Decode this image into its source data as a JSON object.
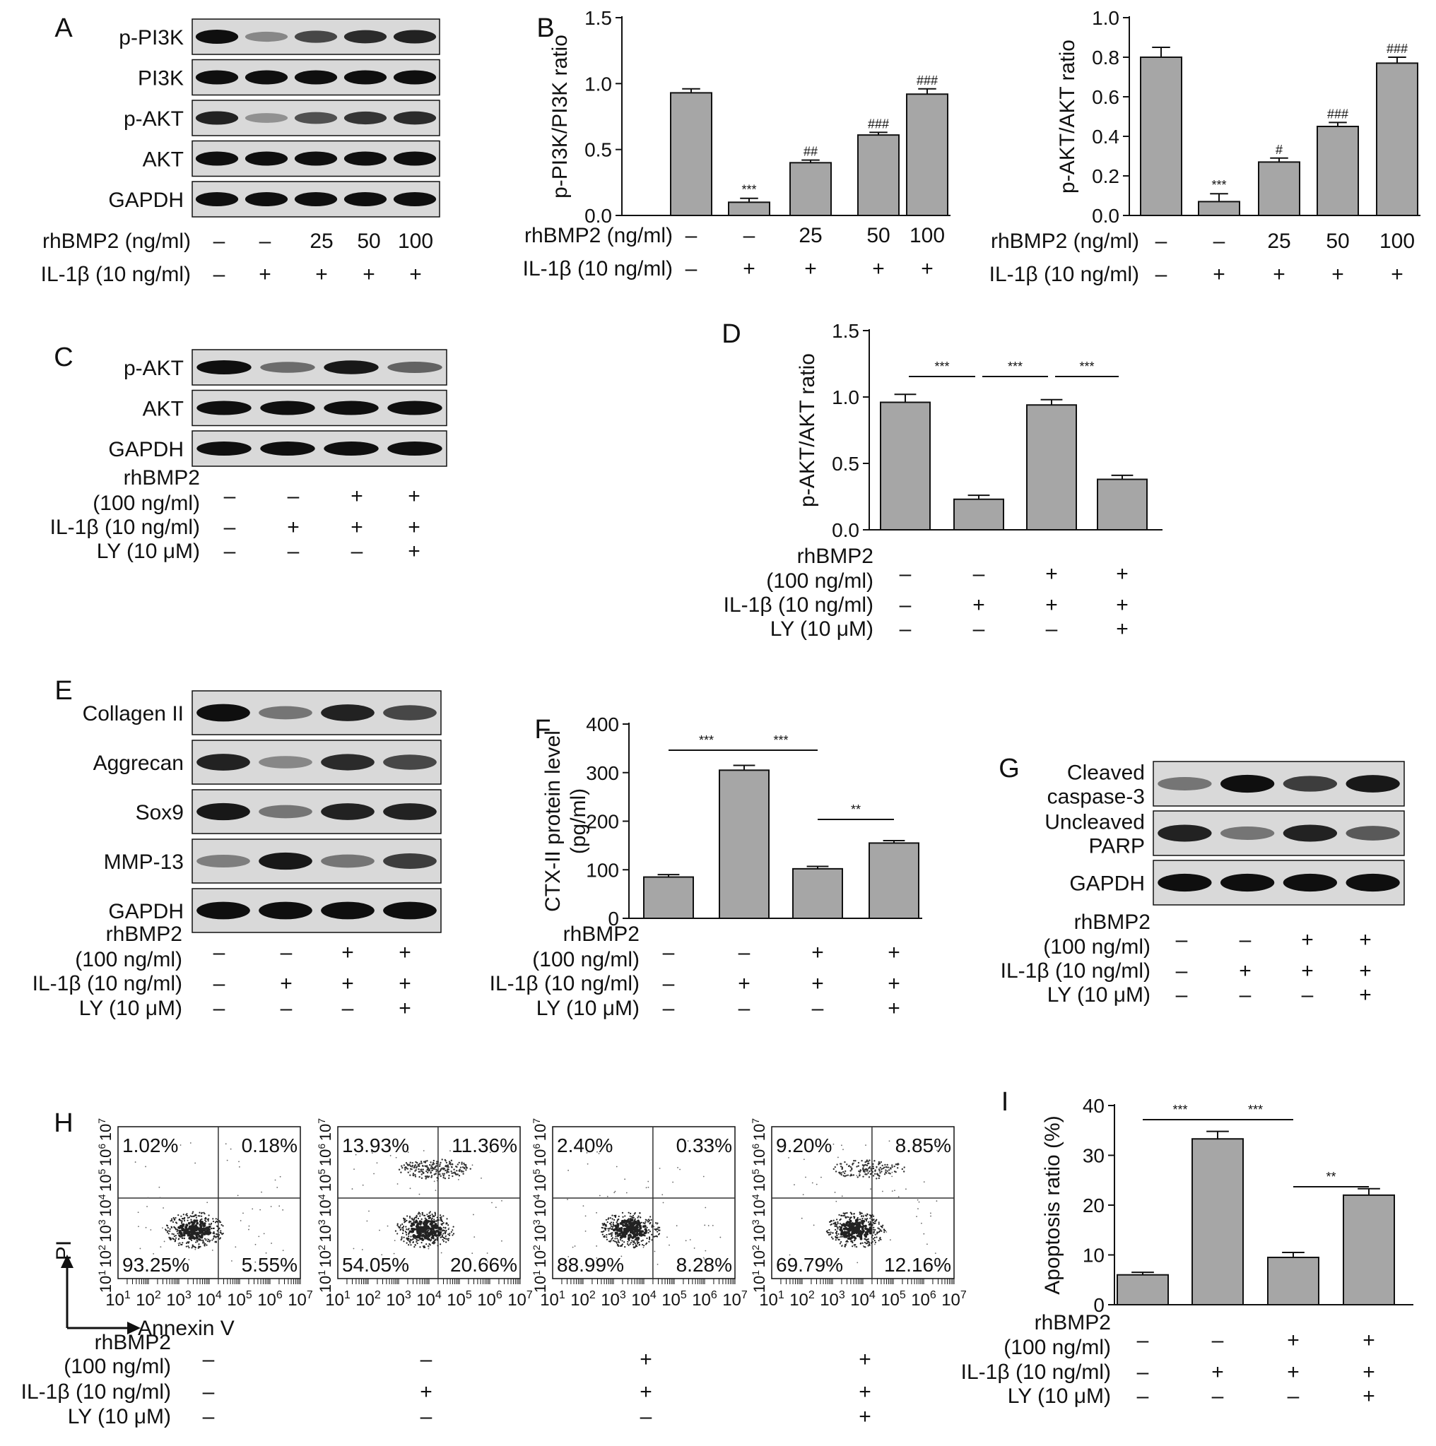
{
  "symbols": {
    "minus": "–",
    "plus": "+"
  },
  "panel_labels": {
    "A": "A",
    "B": "B",
    "C": "C",
    "D": "D",
    "E": "E",
    "F": "F",
    "G": "G",
    "H": "H",
    "I": "I"
  },
  "blot_A": {
    "bands": [
      "p-PI3K",
      "PI3K",
      "p-AKT",
      "AKT",
      "GAPDH"
    ],
    "intensities": [
      [
        1.0,
        0.35,
        0.7,
        0.85,
        0.9
      ],
      [
        1.0,
        1.0,
        1.0,
        1.0,
        1.0
      ],
      [
        0.9,
        0.3,
        0.65,
        0.8,
        0.85
      ],
      [
        1.0,
        1.0,
        1.0,
        1.0,
        1.0
      ],
      [
        1.0,
        1.0,
        1.0,
        1.0,
        1.0
      ]
    ]
  },
  "dose_rows": {
    "rhbmp2_label": "rhBMP2 (ng/ml)",
    "il1b_label": "IL-1β (10 ng/ml)",
    "rhbmp2_values": [
      "–",
      "–",
      "25",
      "50",
      "100"
    ],
    "il1b_values": [
      "–",
      "+",
      "+",
      "+",
      "+"
    ]
  },
  "four_rows": {
    "rhbmp2_line1": "rhBMP2",
    "rhbmp2_line2": "(100 ng/ml)",
    "il1b_label": "IL-1β (10 ng/ml)",
    "ly_label": "LY (10 μM)",
    "rhbmp2": [
      "–",
      "–",
      "+",
      "+"
    ],
    "il1b": [
      "–",
      "+",
      "+",
      "+"
    ],
    "ly": [
      "–",
      "–",
      "–",
      "+"
    ]
  },
  "blot_C": {
    "bands": [
      "p-AKT",
      "AKT",
      "GAPDH"
    ],
    "intensities": [
      [
        1.0,
        0.5,
        0.95,
        0.55
      ],
      [
        1.0,
        1.0,
        1.0,
        1.0
      ],
      [
        1.0,
        1.0,
        1.0,
        1.0
      ]
    ]
  },
  "blot_E": {
    "bands": [
      "Collagen II",
      "Aggrecan",
      "Sox9",
      "MMP-13",
      "GAPDH"
    ],
    "intensities": [
      [
        1.0,
        0.45,
        0.9,
        0.7
      ],
      [
        0.9,
        0.35,
        0.85,
        0.7
      ],
      [
        0.95,
        0.45,
        0.9,
        0.9
      ],
      [
        0.4,
        0.95,
        0.45,
        0.75
      ],
      [
        1.0,
        1.0,
        1.0,
        1.0
      ]
    ]
  },
  "blot_G": {
    "bands": [
      [
        "Cleaved",
        "caspase-3"
      ],
      [
        "Uncleaved",
        "PARP"
      ],
      [
        "GAPDH"
      ]
    ],
    "intensities": [
      [
        0.45,
        1.0,
        0.75,
        0.95
      ],
      [
        0.9,
        0.45,
        0.9,
        0.6
      ],
      [
        1.0,
        1.0,
        1.0,
        1.0
      ]
    ]
  },
  "flow_H": {
    "axis_y": "PI",
    "axis_x": "Annexin V",
    "tick_exponents": [
      "1",
      "2",
      "3",
      "4",
      "5",
      "6",
      "7"
    ],
    "panels": [
      {
        "quadrants": [
          "1.02%",
          "0.18%",
          "93.25%",
          "5.55%"
        ],
        "cloud_bias": 0.0
      },
      {
        "quadrants": [
          "13.93%",
          "11.36%",
          "54.05%",
          "20.66%"
        ],
        "cloud_bias": 1.0
      },
      {
        "quadrants": [
          "2.40%",
          "0.33%",
          "88.99%",
          "8.28%"
        ],
        "cloud_bias": 0.1
      },
      {
        "quadrants": [
          "9.20%",
          "8.85%",
          "69.79%",
          "12.16%"
        ],
        "cloud_bias": 0.7
      }
    ]
  },
  "chart_data": [
    {
      "id": "B-left",
      "type": "bar",
      "ylabel": "p-PI3K/PI3K ratio",
      "ylim": [
        0,
        1.5
      ],
      "yticks": [
        "0.0",
        "0.5",
        "1.0",
        "1.5"
      ],
      "ytick_values": [
        0,
        0.5,
        1.0,
        1.5
      ],
      "values": [
        0.93,
        0.1,
        0.4,
        0.61,
        0.92
      ],
      "errors": [
        0.03,
        0.03,
        0.02,
        0.02,
        0.04
      ],
      "annotations": [
        "",
        "***",
        "##",
        "###",
        "###"
      ]
    },
    {
      "id": "B-right",
      "type": "bar",
      "ylabel": "p-AKT/AKT ratio",
      "ylim": [
        0,
        1.0
      ],
      "yticks": [
        "0.0",
        "0.2",
        "0.4",
        "0.6",
        "0.8",
        "1.0"
      ],
      "ytick_values": [
        0,
        0.2,
        0.4,
        0.6,
        0.8,
        1.0
      ],
      "values": [
        0.8,
        0.07,
        0.27,
        0.45,
        0.77
      ],
      "errors": [
        0.05,
        0.04,
        0.02,
        0.02,
        0.03
      ],
      "annotations": [
        "",
        "***",
        "#",
        "###",
        "###"
      ]
    },
    {
      "id": "D",
      "type": "bar",
      "ylabel": "p-AKT/AKT ratio",
      "ylim": [
        0,
        1.5
      ],
      "yticks": [
        "0.0",
        "0.5",
        "1.0",
        "1.5"
      ],
      "ytick_values": [
        0,
        0.5,
        1.0,
        1.5
      ],
      "values": [
        0.96,
        0.23,
        0.94,
        0.38
      ],
      "errors": [
        0.06,
        0.03,
        0.04,
        0.03
      ],
      "significance": [
        {
          "from": 0,
          "to": 1,
          "label": "***"
        },
        {
          "from": 1,
          "to": 2,
          "label": "***"
        },
        {
          "from": 2,
          "to": 3,
          "label": "***"
        }
      ]
    },
    {
      "id": "F",
      "type": "bar",
      "ylabel": "CTX-II protein level",
      "ylabel2": "(pg/ml)",
      "ylim": [
        0,
        400
      ],
      "yticks": [
        "0",
        "100",
        "200",
        "300",
        "400"
      ],
      "ytick_values": [
        0,
        100,
        200,
        300,
        400
      ],
      "values": [
        85,
        305,
        102,
        155
      ],
      "errors": [
        5,
        10,
        5,
        5
      ],
      "significance": [
        {
          "from": 0,
          "to": 1,
          "label": "***"
        },
        {
          "from": 1,
          "to": 2,
          "label": "***"
        },
        {
          "from": 2,
          "to": 3,
          "label": "**"
        }
      ]
    },
    {
      "id": "I",
      "type": "bar",
      "ylabel": "Apoptosis ratio (%)",
      "ylim": [
        0,
        40
      ],
      "yticks": [
        "0",
        "10",
        "20",
        "30",
        "40"
      ],
      "ytick_values": [
        0,
        10,
        20,
        30,
        40
      ],
      "values": [
        6,
        33.3,
        9.5,
        22
      ],
      "errors": [
        0.5,
        1.5,
        1.0,
        1.3
      ],
      "significance": [
        {
          "from": 0,
          "to": 1,
          "label": "***"
        },
        {
          "from": 1,
          "to": 2,
          "label": "***"
        },
        {
          "from": 2,
          "to": 3,
          "label": "**"
        }
      ]
    }
  ]
}
